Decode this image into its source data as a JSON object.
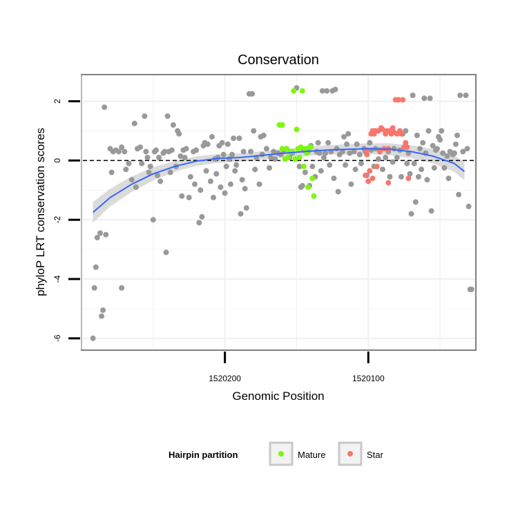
{
  "chart_data": {
    "type": "scatter",
    "title": "Conservation",
    "xlabel": "Genomic Position",
    "ylabel": "phyloP LRT conservation scores",
    "x_reversed": true,
    "xlim": [
      1520300,
      1520025
    ],
    "ylim": [
      -6.4,
      2.9
    ],
    "x_ticks": [
      1520200,
      1520100
    ],
    "y_ticks": [
      2,
      0,
      -2,
      -4,
      -6
    ],
    "grid": true,
    "reference_line": {
      "y": 0,
      "style": "dashed"
    },
    "smooth": {
      "color": "#3366ff",
      "points": [
        [
          1520292,
          -1.75
        ],
        [
          1520280,
          -1.25
        ],
        [
          1520265,
          -0.8
        ],
        [
          1520250,
          -0.45
        ],
        [
          1520235,
          -0.2
        ],
        [
          1520220,
          -0.02
        ],
        [
          1520205,
          0.07
        ],
        [
          1520190,
          0.1
        ],
        [
          1520175,
          0.17
        ],
        [
          1520160,
          0.24
        ],
        [
          1520145,
          0.3
        ],
        [
          1520130,
          0.35
        ],
        [
          1520115,
          0.38
        ],
        [
          1520100,
          0.4
        ],
        [
          1520085,
          0.38
        ],
        [
          1520070,
          0.3
        ],
        [
          1520055,
          0.15
        ],
        [
          1520040,
          -0.1
        ],
        [
          1520033,
          -0.37
        ]
      ],
      "band_width": [
        0.35,
        0.3,
        0.26,
        0.22,
        0.18,
        0.16,
        0.15,
        0.14,
        0.14,
        0.14,
        0.15,
        0.16,
        0.17,
        0.18,
        0.2,
        0.22,
        0.24,
        0.28,
        0.3
      ]
    },
    "legend": {
      "title": "Hairpin partition",
      "position": "bottom"
    },
    "series": [
      {
        "name": "",
        "color": "#999999",
        "points": [
          [
            1520292,
            -6
          ],
          [
            1520291,
            -4.3
          ],
          [
            1520290,
            -3.6
          ],
          [
            1520289,
            -2.6
          ],
          [
            1520287,
            -2.45
          ],
          [
            1520286,
            -5.25
          ],
          [
            1520285,
            -5.05
          ],
          [
            1520284,
            1.8
          ],
          [
            1520283,
            -2.5
          ],
          [
            1520280,
            0.4
          ],
          [
            1520279,
            -0.4
          ],
          [
            1520278,
            0.3
          ],
          [
            1520276,
            0.35
          ],
          [
            1520274,
            0.3
          ],
          [
            1520272,
            -4.3
          ],
          [
            1520272,
            0.45
          ],
          [
            1520270,
            0.3
          ],
          [
            1520269,
            -0.3
          ],
          [
            1520267,
            -0.1
          ],
          [
            1520265,
            -0.65
          ],
          [
            1520263,
            1.25
          ],
          [
            1520262,
            -0.9
          ],
          [
            1520261,
            0.4
          ],
          [
            1520259,
            0.45
          ],
          [
            1520258,
            -0.1
          ],
          [
            1520256,
            1.5
          ],
          [
            1520255,
            0.3
          ],
          [
            1520254,
            0.1
          ],
          [
            1520253,
            -0.4
          ],
          [
            1520252,
            -0.2
          ],
          [
            1520250,
            -2
          ],
          [
            1520249,
            0.3
          ],
          [
            1520248,
            0.35
          ],
          [
            1520247,
            -0.5
          ],
          [
            1520246,
            0.1
          ],
          [
            1520245,
            -0.7
          ],
          [
            1520243,
            0.25
          ],
          [
            1520242,
            0.3
          ],
          [
            1520241,
            -3.1
          ],
          [
            1520240,
            1.5
          ],
          [
            1520239,
            0.3
          ],
          [
            1520238,
            -0.4
          ],
          [
            1520237,
            0.35
          ],
          [
            1520236,
            1.2
          ],
          [
            1520234,
            -0.2
          ],
          [
            1520233,
            1.0
          ],
          [
            1520232,
            0.9
          ],
          [
            1520231,
            0.15
          ],
          [
            1520230,
            -1.2
          ],
          [
            1520229,
            0.35
          ],
          [
            1520228,
            0.1
          ],
          [
            1520227,
            0.4
          ],
          [
            1520225,
            -1.25
          ],
          [
            1520224,
            -0.55
          ],
          [
            1520222,
            0.3
          ],
          [
            1520221,
            -0.8
          ],
          [
            1520220,
            0.35
          ],
          [
            1520218,
            -2.1
          ],
          [
            1520217,
            -1.0
          ],
          [
            1520216,
            -1.9
          ],
          [
            1520215,
            0.5
          ],
          [
            1520214,
            0.6
          ],
          [
            1520213,
            -0.35
          ],
          [
            1520212,
            0.55
          ],
          [
            1520210,
            -0.7
          ],
          [
            1520209,
            0.8
          ],
          [
            1520208,
            -1.25
          ],
          [
            1520207,
            0.05
          ],
          [
            1520206,
            -0.45
          ],
          [
            1520205,
            0.1
          ],
          [
            1520204,
            0.5
          ],
          [
            1520203,
            -0.9
          ],
          [
            1520202,
            0.6
          ],
          [
            1520201,
            0.2
          ],
          [
            1520200,
            -1.1
          ],
          [
            1520199,
            -0.2
          ],
          [
            1520198,
            0.55
          ],
          [
            1520197,
            0.05
          ],
          [
            1520196,
            -0.8
          ],
          [
            1520195,
            0.2
          ],
          [
            1520194,
            0.75
          ],
          [
            1520193,
            -0.35
          ],
          [
            1520192,
            -0.15
          ],
          [
            1520190,
            0.75
          ],
          [
            1520189,
            -1.8
          ],
          [
            1520188,
            -0.65
          ],
          [
            1520187,
            0.3
          ],
          [
            1520186,
            -0.95
          ],
          [
            1520185,
            -1.6
          ],
          [
            1520183,
            2.25
          ],
          [
            1520182,
            0.3
          ],
          [
            1520181,
            2.25
          ],
          [
            1520180,
            1.0
          ],
          [
            1520179,
            -0.3
          ],
          [
            1520178,
            0.1
          ],
          [
            1520176,
            -0.8
          ],
          [
            1520175,
            0.8
          ],
          [
            1520174,
            0.2
          ],
          [
            1520173,
            0.85
          ],
          [
            1520171,
            0.4
          ],
          [
            1520169,
            -0.25
          ],
          [
            1520168,
            0.1
          ],
          [
            1520166,
            0.3
          ],
          [
            1520165,
            0.05
          ],
          [
            1520163,
            0.25
          ],
          [
            1520161,
            0.2
          ],
          [
            1520159,
            0.35
          ],
          [
            1520157,
            0.4
          ],
          [
            1520155,
            0.1
          ],
          [
            1520153,
            0.25
          ],
          [
            1520150,
            2.45
          ],
          [
            1520148,
            -0.2
          ],
          [
            1520147,
            -0.9
          ],
          [
            1520146,
            -0.85
          ],
          [
            1520145,
            0.35
          ],
          [
            1520144,
            -0.4
          ],
          [
            1520142,
            0.3
          ],
          [
            1520141,
            -0.85
          ],
          [
            1520140,
            0.5
          ],
          [
            1520139,
            -0.2
          ],
          [
            1520137,
            -0.55
          ],
          [
            1520136,
            0.3
          ],
          [
            1520135,
            0.6
          ],
          [
            1520134,
            0.25
          ],
          [
            1520133,
            -0.35
          ],
          [
            1520132,
            2.35
          ],
          [
            1520131,
            0.1
          ],
          [
            1520130,
            0.25
          ],
          [
            1520129,
            2.35
          ],
          [
            1520128,
            0.6
          ],
          [
            1520127,
            -0.15
          ],
          [
            1520126,
            0.3
          ],
          [
            1520125,
            2.35
          ],
          [
            1520124,
            -0.6
          ],
          [
            1520123,
            2.4
          ],
          [
            1520122,
            0.4
          ],
          [
            1520121,
            -1.05
          ],
          [
            1520120,
            0.2
          ],
          [
            1520118,
            0.3
          ],
          [
            1520117,
            0.8
          ],
          [
            1520116,
            -0.15
          ],
          [
            1520115,
            0.55
          ],
          [
            1520114,
            0.9
          ],
          [
            1520113,
            0.25
          ],
          [
            1520112,
            -0.8
          ],
          [
            1520110,
            0.3
          ],
          [
            1520109,
            -0.3
          ],
          [
            1520108,
            0.55
          ],
          [
            1520106,
            0.2
          ],
          [
            1520105,
            -0.1
          ],
          [
            1520103,
            0.4
          ],
          [
            1520102,
            0.3
          ],
          [
            1520101,
            -0.5
          ],
          [
            1520099,
            0.6
          ],
          [
            1520098,
            0.35
          ],
          [
            1520096,
            -0.2
          ],
          [
            1520095,
            0.4
          ],
          [
            1520093,
            0.05
          ],
          [
            1520092,
            0.35
          ],
          [
            1520090,
            -0.3
          ],
          [
            1520088,
            0.1
          ],
          [
            1520086,
            0.3
          ],
          [
            1520085,
            -0.55
          ],
          [
            1520083,
            -0.05
          ],
          [
            1520082,
            0.4
          ],
          [
            1520080,
            0.1
          ],
          [
            1520078,
            0.35
          ],
          [
            1520077,
            -0.55
          ],
          [
            1520076,
            0.9
          ],
          [
            1520074,
            1.0
          ],
          [
            1520073,
            -0.1
          ],
          [
            1520072,
            0.25
          ],
          [
            1520071,
            -0.45
          ],
          [
            1520070,
            -1.8
          ],
          [
            1520069,
            2.2
          ],
          [
            1520068,
            -0.1
          ],
          [
            1520067,
            -1.4
          ],
          [
            1520066,
            0.85
          ],
          [
            1520065,
            -0.55
          ],
          [
            1520064,
            0.4
          ],
          [
            1520063,
            -0.3
          ],
          [
            1520062,
            0.6
          ],
          [
            1520061,
            2.1
          ],
          [
            1520060,
            0.25
          ],
          [
            1520059,
            -0.65
          ],
          [
            1520058,
            1.0
          ],
          [
            1520057,
            2.1
          ],
          [
            1520056,
            -1.7
          ],
          [
            1520055,
            0.5
          ],
          [
            1520054,
            -0.25
          ],
          [
            1520053,
            0.35
          ],
          [
            1520052,
            0.4
          ],
          [
            1520051,
            0.8
          ],
          [
            1520050,
            0.7
          ],
          [
            1520049,
            1.0
          ],
          [
            1520048,
            0.25
          ],
          [
            1520047,
            -0.25
          ],
          [
            1520045,
            0.15
          ],
          [
            1520044,
            -0.6
          ],
          [
            1520043,
            0.3
          ],
          [
            1520041,
            0.2
          ],
          [
            1520040,
            0.25
          ],
          [
            1520039,
            0.55
          ],
          [
            1520038,
            0.85
          ],
          [
            1520037,
            -1.15
          ],
          [
            1520036,
            2.2
          ],
          [
            1520034,
            0.3
          ],
          [
            1520032,
            2.2
          ],
          [
            1520031,
            0.4
          ],
          [
            1520030,
            -1.55
          ],
          [
            1520029,
            -4.35
          ],
          [
            1520028,
            -4.35
          ]
        ]
      },
      {
        "name": "Mature",
        "color": "#7cf70f",
        "points": [
          [
            1520162,
            1.2
          ],
          [
            1520160,
            1.2
          ],
          [
            1520160,
            0.4
          ],
          [
            1520158,
            0.05
          ],
          [
            1520157,
            0.4
          ],
          [
            1520156,
            0.1
          ],
          [
            1520155,
            0.3
          ],
          [
            1520153,
            0.3
          ],
          [
            1520152,
            2.35
          ],
          [
            1520151,
            0.05
          ],
          [
            1520150,
            1.05
          ],
          [
            1520149,
            0.4
          ],
          [
            1520148,
            0.1
          ],
          [
            1520147,
            0.45
          ],
          [
            1520146,
            2.35
          ],
          [
            1520145,
            -0.2
          ],
          [
            1520144,
            0.4
          ],
          [
            1520143,
            0.25
          ],
          [
            1520142,
            -0.9
          ],
          [
            1520141,
            0.45
          ],
          [
            1520140,
            0.45
          ],
          [
            1520139,
            -0.6
          ],
          [
            1520138,
            -1.2
          ]
        ]
      },
      {
        "name": "Star",
        "color": "#f8766d",
        "points": [
          [
            1520102,
            -0.5
          ],
          [
            1520101,
            0.35
          ],
          [
            1520101,
            0.2
          ],
          [
            1520100,
            -0.7
          ],
          [
            1520099,
            -0.35
          ],
          [
            1520098,
            0.9
          ],
          [
            1520097,
            -0.6
          ],
          [
            1520097,
            1.0
          ],
          [
            1520096,
            0.9
          ],
          [
            1520095,
            1.0
          ],
          [
            1520094,
            -0.2
          ],
          [
            1520093,
            1.0
          ],
          [
            1520092,
            0.3
          ],
          [
            1520091,
            1.1
          ],
          [
            1520090,
            1.05
          ],
          [
            1520089,
            0.4
          ],
          [
            1520088,
            0.9
          ],
          [
            1520087,
            1.0
          ],
          [
            1520086,
            0.4
          ],
          [
            1520086,
            -0.75
          ],
          [
            1520085,
            1.0
          ],
          [
            1520084,
            0.9
          ],
          [
            1520083,
            1.1
          ],
          [
            1520082,
            0.95
          ],
          [
            1520081,
            2.05
          ],
          [
            1520080,
            0.9
          ],
          [
            1520079,
            2.05
          ],
          [
            1520078,
            1.0
          ],
          [
            1520077,
            0.9
          ],
          [
            1520076,
            2.05
          ],
          [
            1520075,
            0.45
          ],
          [
            1520074,
            0.6
          ],
          [
            1520073,
            0.45
          ],
          [
            1520072,
            -0.6
          ]
        ]
      }
    ]
  }
}
